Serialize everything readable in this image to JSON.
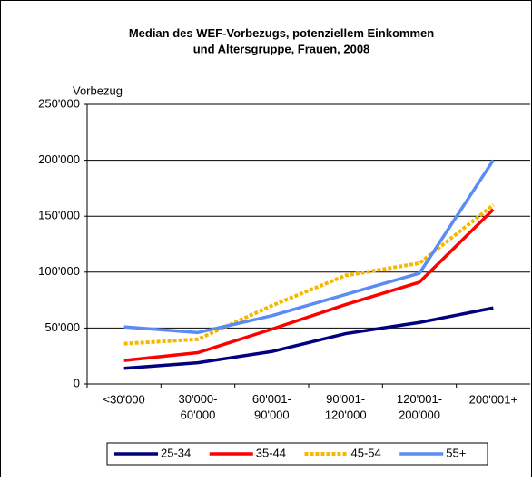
{
  "chart_data": {
    "type": "line",
    "title": "Median des WEF-Vorbezugs, potenziellem Einkommen\nund Altersgruppe, Frauen, 2008",
    "y_label": "Vorbezug",
    "categories": [
      "<30'000",
      "30'000-\n60'000",
      "60'001-\n90'000",
      "90'001-\n120'000",
      "120'001-\n200'000",
      "200'001+"
    ],
    "series": [
      {
        "name": "25-34",
        "color": "#000080",
        "values": [
          14000,
          19000,
          29000,
          45000,
          55000,
          68000
        ]
      },
      {
        "name": "35-44",
        "color": "#ff0000",
        "values": [
          21000,
          28000,
          49000,
          71000,
          91000,
          156000
        ]
      },
      {
        "name": "45-54",
        "color": "#f5b800",
        "dashed": true,
        "values": [
          36000,
          40000,
          70000,
          97000,
          108000,
          160000
        ]
      },
      {
        "name": "55+",
        "color": "#5b8cf5",
        "values": [
          51000,
          46000,
          61000,
          80000,
          99000,
          200000
        ]
      }
    ],
    "ylim": [
      0,
      250000
    ],
    "yticks": [
      0,
      {
        "value": 50000,
        "label": "50'000"
      },
      {
        "value": 100000,
        "label": "100'000"
      },
      {
        "value": 150000,
        "label": "150'000"
      },
      {
        "value": 200000,
        "label": "200'000"
      },
      {
        "value": 250000,
        "label": "250'000"
      }
    ],
    "grid": true,
    "legend": "bottom"
  }
}
